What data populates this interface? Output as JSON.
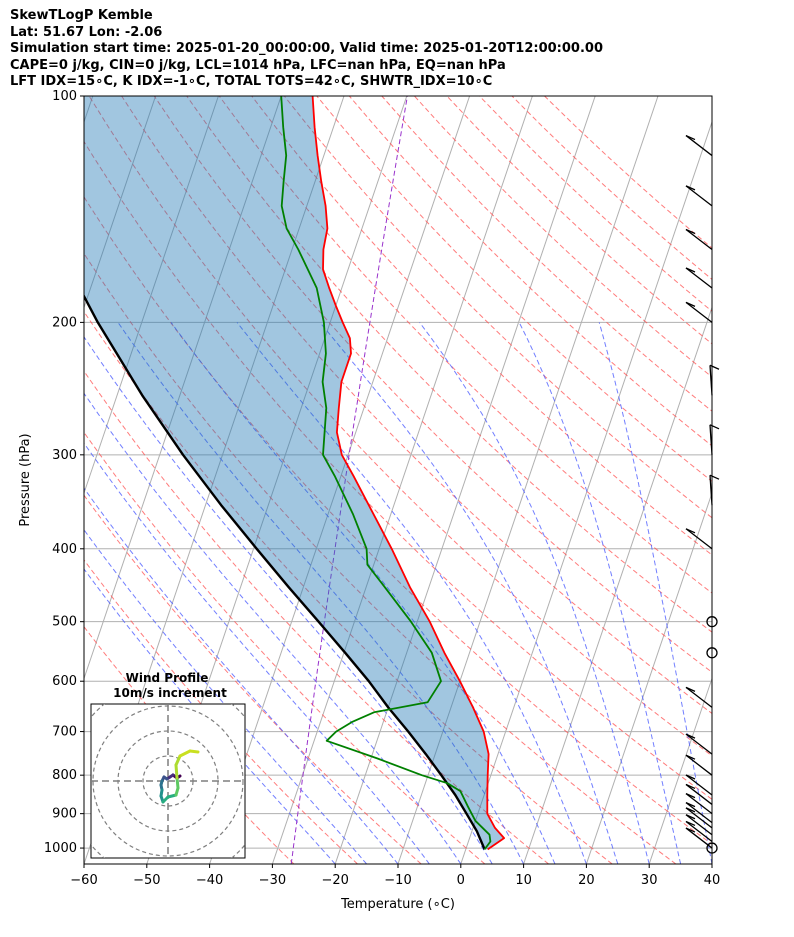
{
  "header": {
    "line1": "SkewTLogP Kemble",
    "line2": "Lat: 51.67   Lon: -2.06",
    "line3": "Simulation start time: 2025-01-20_00:00:00, Valid time: 2025-01-20T12:00:00.00",
    "line4": "CAPE=0 j/kg, CIN=0 j/kg, LCL=1014 hPa, LFC=nan hPa, EQ=nan hPa",
    "line5": "LFT IDX=15∘C, K IDX=-1∘C, TOTAL TOTS=42∘C, SHWTR_IDX=10∘C"
  },
  "chart_data": {
    "type": "line",
    "title": "SkewTLogP Kemble",
    "xlabel": "Temperature (∘C)",
    "ylabel": "Pressure (hPa)",
    "xlim": [
      -60,
      40
    ],
    "ylim": [
      1050,
      100
    ],
    "y_scale": "log",
    "x_ticks": [
      -60,
      -50,
      -40,
      -30,
      -20,
      -10,
      0,
      10,
      20,
      30,
      40
    ],
    "y_ticks": [
      100,
      200,
      300,
      400,
      500,
      600,
      700,
      800,
      900,
      1000
    ],
    "grid": true,
    "series": [
      {
        "kind": "temperature",
        "color": "#ff0000",
        "points": [
          [
            1004,
            3.5
          ],
          [
            970,
            5.5
          ],
          [
            940,
            3.5
          ],
          [
            900,
            1.5
          ],
          [
            850,
            0.5
          ],
          [
            800,
            -0.5
          ],
          [
            750,
            -1.5
          ],
          [
            700,
            -3.5
          ],
          [
            650,
            -6.5
          ],
          [
            600,
            -10
          ],
          [
            550,
            -14
          ],
          [
            500,
            -18
          ],
          [
            450,
            -23
          ],
          [
            400,
            -28
          ],
          [
            350,
            -34
          ],
          [
            320,
            -38
          ],
          [
            300,
            -41
          ],
          [
            280,
            -43
          ],
          [
            260,
            -44
          ],
          [
            240,
            -45
          ],
          [
            220,
            -45
          ],
          [
            210,
            -46
          ],
          [
            200,
            -48
          ],
          [
            190,
            -50
          ],
          [
            180,
            -52
          ],
          [
            170,
            -54
          ],
          [
            160,
            -55
          ],
          [
            150,
            -55.5
          ],
          [
            140,
            -57
          ],
          [
            130,
            -59
          ],
          [
            120,
            -61
          ],
          [
            110,
            -63
          ],
          [
            100,
            -65
          ]
        ]
      },
      {
        "kind": "dewpoint",
        "color": "#008000",
        "points": [
          [
            1004,
            3
          ],
          [
            980,
            3.5
          ],
          [
            960,
            3
          ],
          [
            920,
            0
          ],
          [
            880,
            -2
          ],
          [
            840,
            -4
          ],
          [
            820,
            -6.5
          ],
          [
            800,
            -11
          ],
          [
            760,
            -19
          ],
          [
            720,
            -28
          ],
          [
            700,
            -27
          ],
          [
            680,
            -25
          ],
          [
            660,
            -22
          ],
          [
            640,
            -14
          ],
          [
            600,
            -13
          ],
          [
            550,
            -16
          ],
          [
            500,
            -21
          ],
          [
            450,
            -27
          ],
          [
            420,
            -31
          ],
          [
            400,
            -32
          ],
          [
            360,
            -36
          ],
          [
            320,
            -41
          ],
          [
            300,
            -44
          ],
          [
            260,
            -46
          ],
          [
            240,
            -48
          ],
          [
            220,
            -49
          ],
          [
            200,
            -51
          ],
          [
            180,
            -54
          ],
          [
            160,
            -59
          ],
          [
            150,
            -62
          ],
          [
            140,
            -64
          ],
          [
            130,
            -65
          ],
          [
            120,
            -66
          ],
          [
            110,
            -68
          ],
          [
            100,
            -70
          ]
        ]
      },
      {
        "kind": "parcel",
        "color": "#000000",
        "points": [
          [
            1004,
            3
          ],
          [
            950,
            0.8
          ],
          [
            900,
            -1.8
          ],
          [
            850,
            -4.6
          ],
          [
            800,
            -7.9
          ],
          [
            750,
            -11.5
          ],
          [
            700,
            -15.5
          ],
          [
            650,
            -20
          ],
          [
            600,
            -24.5
          ],
          [
            550,
            -29.8
          ],
          [
            500,
            -35.7
          ],
          [
            450,
            -42.3
          ],
          [
            400,
            -49.5
          ],
          [
            350,
            -57.5
          ],
          [
            300,
            -66.3
          ],
          [
            250,
            -76
          ],
          [
            200,
            -87
          ],
          [
            150,
            -100
          ],
          [
            100,
            -117
          ]
        ]
      }
    ],
    "hodograph": {
      "title": "Wind Profile",
      "subtitle": "10m/s increment"
    },
    "wind_barbs": [
      {
        "p": 1000,
        "calm": true
      },
      {
        "p": 500,
        "calm": true
      },
      {
        "p": 550,
        "calm": true
      }
    ]
  }
}
